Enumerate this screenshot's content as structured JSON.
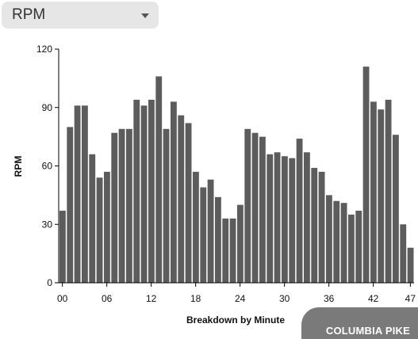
{
  "metric_select": {
    "selected": "RPM",
    "icon": "chevron-down-icon"
  },
  "footer": {
    "label": "COLUMBIA PIKE"
  },
  "colors": {
    "bar": "#5c5c5c",
    "axis": "#000000",
    "select_bg": "#e6e6e6",
    "footer_bg": "#7a7a7a"
  },
  "chart_data": {
    "type": "bar",
    "xlabel": "Breakdown by Minute",
    "ylabel": "RPM",
    "ylim": [
      0,
      120
    ],
    "yticks": [
      "0",
      "30",
      "60",
      "90",
      "120"
    ],
    "xticks": [
      {
        "minute": 0,
        "label": "00"
      },
      {
        "minute": 6,
        "label": "06"
      },
      {
        "minute": 12,
        "label": "12"
      },
      {
        "minute": 18,
        "label": "18"
      },
      {
        "minute": 24,
        "label": "24"
      },
      {
        "minute": 30,
        "label": "30"
      },
      {
        "minute": 36,
        "label": "36"
      },
      {
        "minute": 42,
        "label": "42"
      },
      {
        "minute": 47,
        "label": "47"
      }
    ],
    "grid": false,
    "x": [
      0,
      1,
      2,
      3,
      4,
      5,
      6,
      7,
      8,
      9,
      10,
      11,
      12,
      13,
      14,
      15,
      16,
      17,
      18,
      19,
      20,
      21,
      22,
      23,
      24,
      25,
      26,
      27,
      28,
      29,
      30,
      31,
      32,
      33,
      34,
      35,
      36,
      37,
      38,
      39,
      40,
      41,
      42,
      43,
      44,
      45,
      46,
      47
    ],
    "values": [
      37,
      80,
      91,
      91,
      66,
      54,
      57,
      77,
      79,
      79,
      94,
      91,
      94,
      106,
      79,
      93,
      86,
      82,
      57,
      49,
      53,
      44,
      33,
      33,
      40,
      79,
      77,
      75,
      66,
      67,
      65,
      64,
      74,
      67,
      59,
      57,
      45,
      42,
      41,
      35,
      37,
      111,
      93,
      89,
      94,
      76,
      30,
      18
    ]
  }
}
